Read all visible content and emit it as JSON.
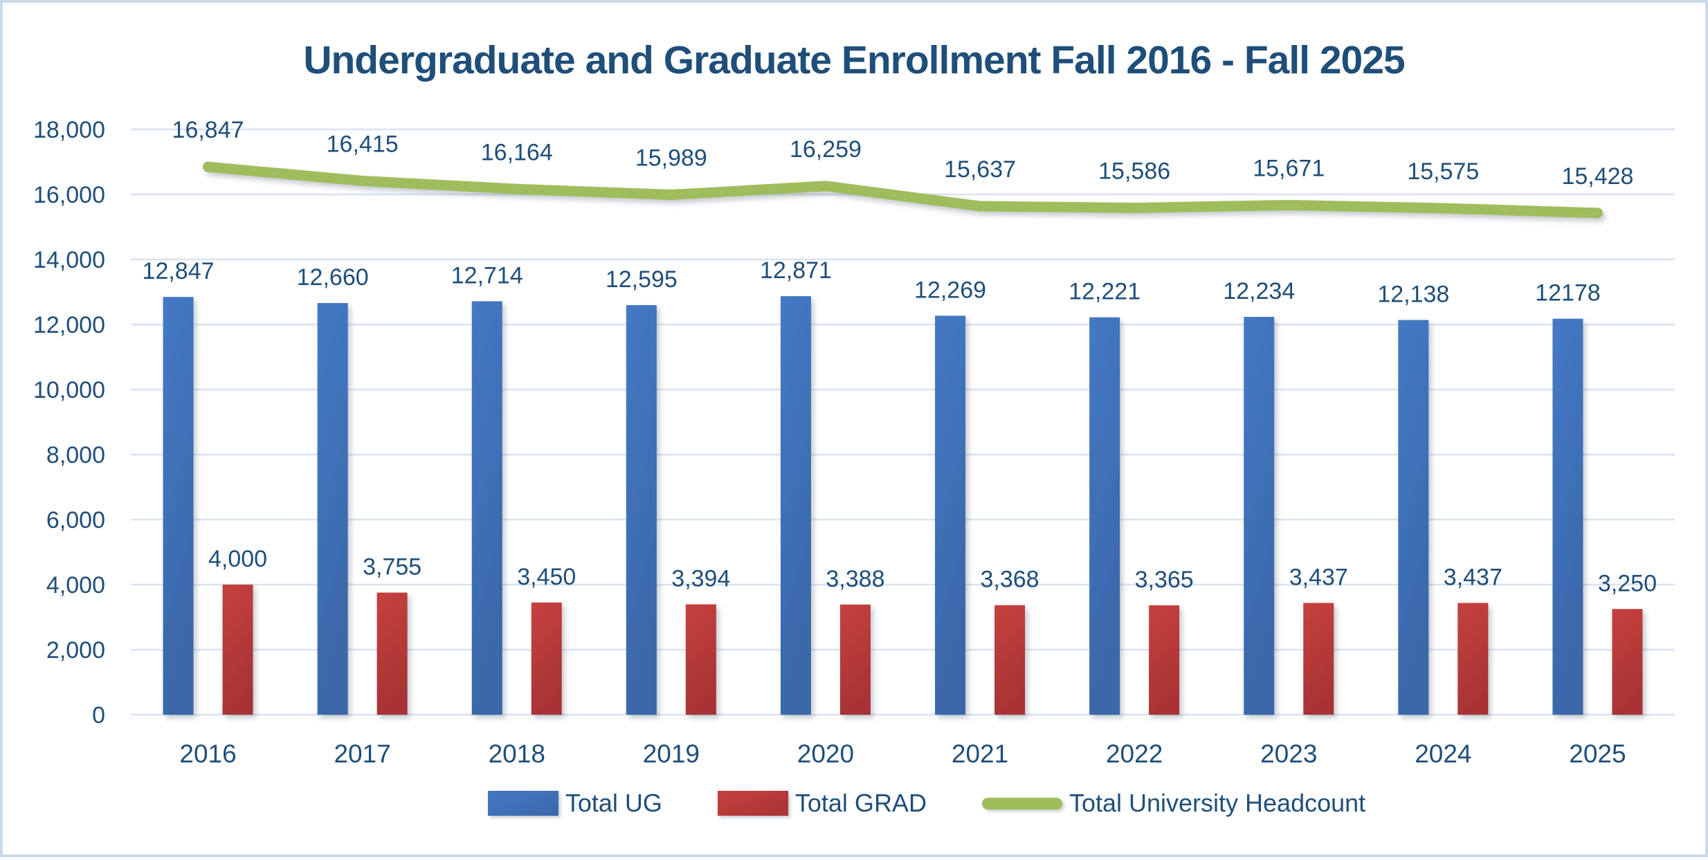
{
  "chart_data": {
    "type": "bar+line",
    "title": "Undergraduate and Graduate Enrollment Fall 2016 - Fall 2025",
    "categories": [
      "2016",
      "2017",
      "2018",
      "2019",
      "2020",
      "2021",
      "2022",
      "2023",
      "2024",
      "2025"
    ],
    "series": [
      {
        "name": "Total UG",
        "type": "bar",
        "color": "#4479C5",
        "color2": "#3A67A8",
        "values": [
          12847,
          12660,
          12714,
          12595,
          12871,
          12269,
          12221,
          12234,
          12138,
          12178
        ],
        "labels": [
          "12,847",
          "12,660",
          "12,714",
          "12,595",
          "12,871",
          "12,269",
          "12,221",
          "12,234",
          "12,138",
          "12178"
        ]
      },
      {
        "name": "Total GRAD",
        "type": "bar",
        "color": "#C5413E",
        "color2": "#A83334",
        "values": [
          4000,
          3755,
          3450,
          3394,
          3388,
          3368,
          3365,
          3437,
          3437,
          3250
        ],
        "labels": [
          "4,000",
          "3,755",
          "3,450",
          "3,394",
          "3,388",
          "3,368",
          "3,365",
          "3,437",
          "3,437",
          "3,250"
        ]
      },
      {
        "name": "Total University Headcount",
        "type": "line",
        "color": "#9FBD5B",
        "values": [
          16847,
          16415,
          16164,
          15989,
          16259,
          15637,
          15586,
          15671,
          15575,
          15428
        ],
        "labels": [
          "16,847",
          "16,415",
          "16,164",
          "15,989",
          "16,259",
          "15,637",
          "15,586",
          "15,671",
          "15,575",
          "15,428"
        ]
      }
    ],
    "y_axis": {
      "min": 0,
      "max": 18000,
      "step": 2000,
      "tick_labels": [
        "0",
        "2,000",
        "4,000",
        "6,000",
        "8,000",
        "10,000",
        "12,000",
        "14,000",
        "16,000",
        "18,000"
      ]
    },
    "grid": true,
    "legend_position": "bottom",
    "colors": {
      "text": "#1F4E79",
      "gridline": "#D9E2F0",
      "frame_border": "#CCD9EA"
    }
  }
}
